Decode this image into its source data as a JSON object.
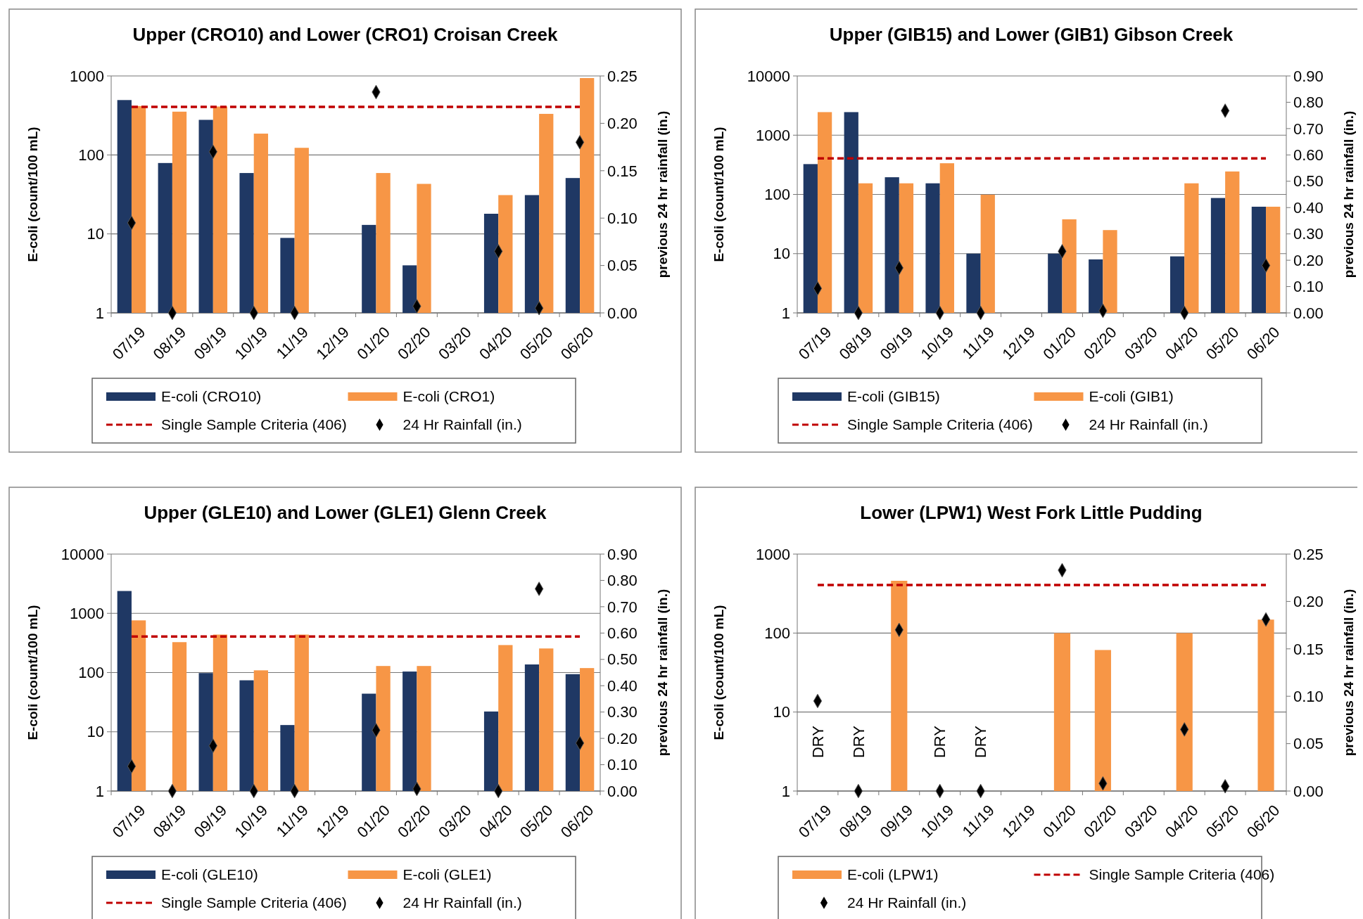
{
  "chart_data": [
    {
      "type": "bar",
      "title": "Upper (CRO10) and Lower (CRO1) Croisan Creek",
      "ylabel": "E-coli (count/100 mL)",
      "y2label": "previous 24 hr rainfall (in.)",
      "categories": [
        "07/19",
        "08/19",
        "09/19",
        "10/19",
        "11/19",
        "12/19",
        "01/20",
        "02/20",
        "03/20",
        "04/20",
        "05/20",
        "06/20"
      ],
      "log": "y",
      "ylim": [
        1,
        1000
      ],
      "yticks": [
        1,
        10,
        100,
        1000
      ],
      "y2lim": [
        0,
        0.25
      ],
      "y2ticks": [
        {
          "value": 0,
          "label": "0.00"
        },
        {
          "value": 0.05,
          "label": "0.05"
        },
        {
          "value": 0.1,
          "label": "0.10"
        },
        {
          "value": 0.15,
          "label": "0.15"
        },
        {
          "value": 0.2,
          "label": "0.20"
        },
        {
          "value": 0.25,
          "label": "0.25"
        }
      ],
      "grid": "y",
      "legend": "bottom",
      "series": [
        {
          "name": "E-coli (CRO10)",
          "color": "#1f3864",
          "values": [
            495,
            79,
            278,
            59,
            8.9,
            null,
            13,
            4,
            null,
            18,
            31,
            51
          ]
        },
        {
          "name": "E-coli (CRO1)",
          "color": "#f79646",
          "values": [
            416,
            353,
            410,
            186,
            123,
            null,
            59,
            43,
            null,
            31,
            331,
            940
          ]
        },
        {
          "name": "Single Sample Criteria (406)",
          "type": "line",
          "color": "#c00000",
          "line_style": "dashed",
          "marker": "none",
          "values": [
            406,
            406,
            406,
            406,
            406,
            406,
            406,
            406,
            406,
            406,
            406,
            406
          ]
        },
        {
          "name": "24 Hr Rainfall (in.)",
          "type": "scatter",
          "axis": "y2",
          "color": "#000000",
          "marker": "diamond",
          "values": [
            0.095,
            0,
            0.17,
            0,
            0,
            null,
            0.233,
            0.007,
            null,
            0.065,
            0.005,
            0.18
          ]
        }
      ]
    },
    {
      "type": "bar",
      "title": "Upper (GIB15) and Lower (GIB1) Gibson Creek",
      "ylabel": "E-coli (count/100 mL)",
      "y2label": "previous 24 hr rainfall (in.)",
      "categories": [
        "07/19",
        "08/19",
        "09/19",
        "10/19",
        "11/19",
        "12/19",
        "01/20",
        "02/20",
        "03/20",
        "04/20",
        "05/20",
        "06/20"
      ],
      "log": "y",
      "ylim": [
        1,
        10000
      ],
      "yticks": [
        1,
        10,
        100,
        1000,
        10000
      ],
      "y2lim": [
        0,
        0.9
      ],
      "y2ticks": [
        {
          "value": 0,
          "label": "0.00"
        },
        {
          "value": 0.1,
          "label": "0.10"
        },
        {
          "value": 0.2,
          "label": "0.20"
        },
        {
          "value": 0.3,
          "label": "0.30"
        },
        {
          "value": 0.4,
          "label": "0.40"
        },
        {
          "value": 0.5,
          "label": "0.50"
        },
        {
          "value": 0.6,
          "label": "0.60"
        },
        {
          "value": 0.7,
          "label": "0.70"
        },
        {
          "value": 0.8,
          "label": "0.80"
        },
        {
          "value": 0.9,
          "label": "0.90"
        }
      ],
      "grid": "y",
      "legend": "bottom",
      "series": [
        {
          "name": "E-coli (GIB15)",
          "color": "#1f3864",
          "values": [
            325,
            2450,
            195,
            154,
            10,
            null,
            10,
            8,
            null,
            9,
            87,
            62
          ]
        },
        {
          "name": "E-coli (GIB1)",
          "color": "#f79646",
          "values": [
            2450,
            154,
            154,
            336,
            99,
            null,
            38,
            25,
            null,
            154,
            244,
            62
          ]
        },
        {
          "name": "Single Sample Criteria (406)",
          "type": "line",
          "color": "#c00000",
          "line_style": "dashed",
          "marker": "none",
          "values": [
            406,
            406,
            406,
            406,
            406,
            406,
            406,
            406,
            406,
            406,
            406,
            406
          ]
        },
        {
          "name": "24 Hr Rainfall (in.)",
          "type": "scatter",
          "axis": "y2",
          "color": "#000000",
          "marker": "diamond",
          "values": [
            0.093,
            0,
            0.171,
            0,
            0,
            null,
            0.234,
            0.008,
            null,
            0,
            0.768,
            0.18
          ]
        }
      ]
    },
    {
      "type": "bar",
      "title": "Upper (GLE10) and Lower (GLE1) Glenn Creek",
      "ylabel": "E-coli (count/100 mL)",
      "y2label": "previous 24 hr rainfall (in.)",
      "categories": [
        "07/19",
        "08/19",
        "09/19",
        "10/19",
        "11/19",
        "12/19",
        "01/20",
        "02/20",
        "03/20",
        "04/20",
        "05/20",
        "06/20"
      ],
      "log": "y",
      "ylim": [
        1,
        10000
      ],
      "yticks": [
        1,
        10,
        100,
        1000,
        10000
      ],
      "y2lim": [
        0,
        0.9
      ],
      "y2ticks": [
        {
          "value": 0,
          "label": "0.00"
        },
        {
          "value": 0.1,
          "label": "0.10"
        },
        {
          "value": 0.2,
          "label": "0.20"
        },
        {
          "value": 0.3,
          "label": "0.30"
        },
        {
          "value": 0.4,
          "label": "0.40"
        },
        {
          "value": 0.5,
          "label": "0.50"
        },
        {
          "value": 0.6,
          "label": "0.60"
        },
        {
          "value": 0.7,
          "label": "0.70"
        },
        {
          "value": 0.8,
          "label": "0.80"
        },
        {
          "value": 0.9,
          "label": "0.90"
        }
      ],
      "grid": "y",
      "legend": "bottom",
      "series": [
        {
          "name": "E-coli (GLE10)",
          "color": "#1f3864",
          "values": [
            2380,
            null,
            98,
            74,
            13,
            null,
            44,
            104,
            null,
            22,
            137,
            94
          ]
        },
        {
          "name": "E-coli (GLE1)",
          "color": "#f79646",
          "values": [
            760,
            326,
            437,
            109,
            437,
            null,
            129,
            129,
            null,
            291,
            255,
            119
          ]
        },
        {
          "name": "Single Sample Criteria (406)",
          "type": "line",
          "color": "#c00000",
          "line_style": "dashed",
          "marker": "none",
          "values": [
            406,
            406,
            406,
            406,
            406,
            406,
            406,
            406,
            406,
            406,
            406,
            406
          ]
        },
        {
          "name": "24 Hr Rainfall (in.)",
          "type": "scatter",
          "axis": "y2",
          "color": "#000000",
          "marker": "diamond",
          "values": [
            0.094,
            0,
            0.172,
            0,
            0,
            null,
            0.231,
            0.008,
            null,
            0,
            0.768,
            0.182
          ]
        }
      ]
    },
    {
      "type": "bar",
      "title": "Lower (LPW1) West Fork Little Pudding",
      "ylabel": "E-coli (count/100 mL)",
      "y2label": "previous 24 hr rainfall (in.)",
      "categories": [
        "07/19",
        "08/19",
        "09/19",
        "10/19",
        "11/19",
        "12/19",
        "01/20",
        "02/20",
        "03/20",
        "04/20",
        "05/20",
        "06/20"
      ],
      "log": "y",
      "ylim": [
        1,
        1000
      ],
      "yticks": [
        1,
        10,
        100,
        1000
      ],
      "y2lim": [
        0,
        0.25
      ],
      "y2ticks": [
        {
          "value": 0,
          "label": "0.00"
        },
        {
          "value": 0.05,
          "label": "0.05"
        },
        {
          "value": 0.1,
          "label": "0.10"
        },
        {
          "value": 0.15,
          "label": "0.15"
        },
        {
          "value": 0.2,
          "label": "0.20"
        },
        {
          "value": 0.25,
          "label": "0.25"
        }
      ],
      "grid": "y",
      "legend": "bottom",
      "annotations": [
        "DRY",
        "DRY",
        "DRY",
        "DRY"
      ],
      "series": [
        {
          "name": "E-coli (LPW1)",
          "color": "#f79646",
          "values": [
            null,
            null,
            459,
            null,
            null,
            null,
            100,
            61,
            null,
            100,
            null,
            148
          ]
        },
        {
          "name": "Single Sample Criteria (406)",
          "type": "line",
          "color": "#c00000",
          "line_style": "dashed",
          "marker": "none",
          "values": [
            406,
            406,
            406,
            406,
            406,
            406,
            406,
            406,
            406,
            406,
            406,
            406
          ]
        },
        {
          "name": "24 Hr Rainfall (in.)",
          "type": "scatter",
          "axis": "y2",
          "color": "#000000",
          "marker": "diamond",
          "values": [
            0.095,
            0,
            0.17,
            0,
            0,
            null,
            0.233,
            0.008,
            null,
            0.065,
            0.005,
            0.181
          ]
        }
      ]
    }
  ]
}
